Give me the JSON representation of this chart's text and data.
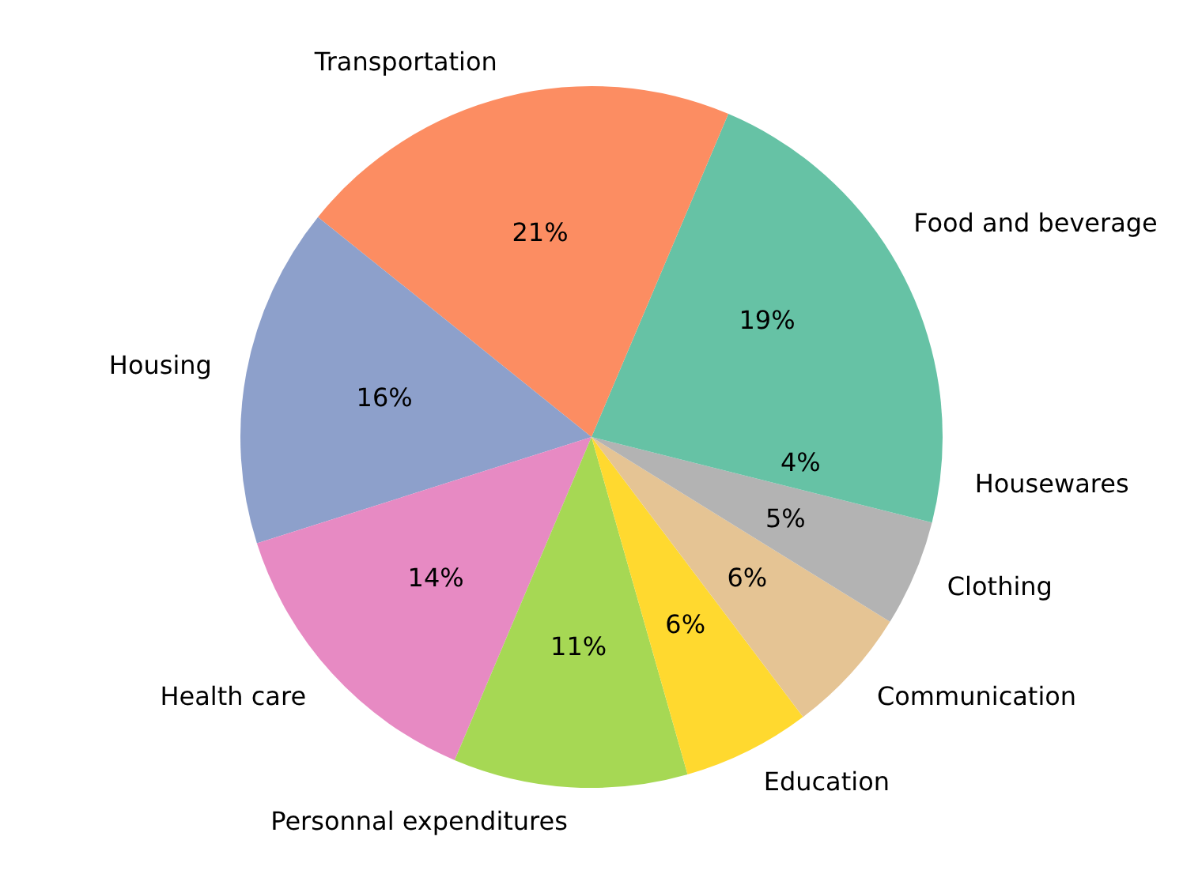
{
  "chart_data": {
    "type": "pie",
    "categories": [
      "Food and beverage",
      "Transportation",
      "Housing",
      "Health care",
      "Personnal expenditures",
      "Education",
      "Communication",
      "Clothing",
      "Housewares"
    ],
    "values": [
      19,
      21,
      16,
      14,
      11,
      6,
      6,
      5,
      4
    ],
    "colors": [
      "#66c2a5",
      "#fc8d62",
      "#8da0cb",
      "#e78ac3",
      "#a6d854",
      "#ffd92f",
      "#e5c494",
      "#b3b3b3",
      "#66c2a5"
    ],
    "value_labels": [
      "19%",
      "21%",
      "16%",
      "14%",
      "11%",
      "6%",
      "6%",
      "5%",
      "4%"
    ]
  }
}
